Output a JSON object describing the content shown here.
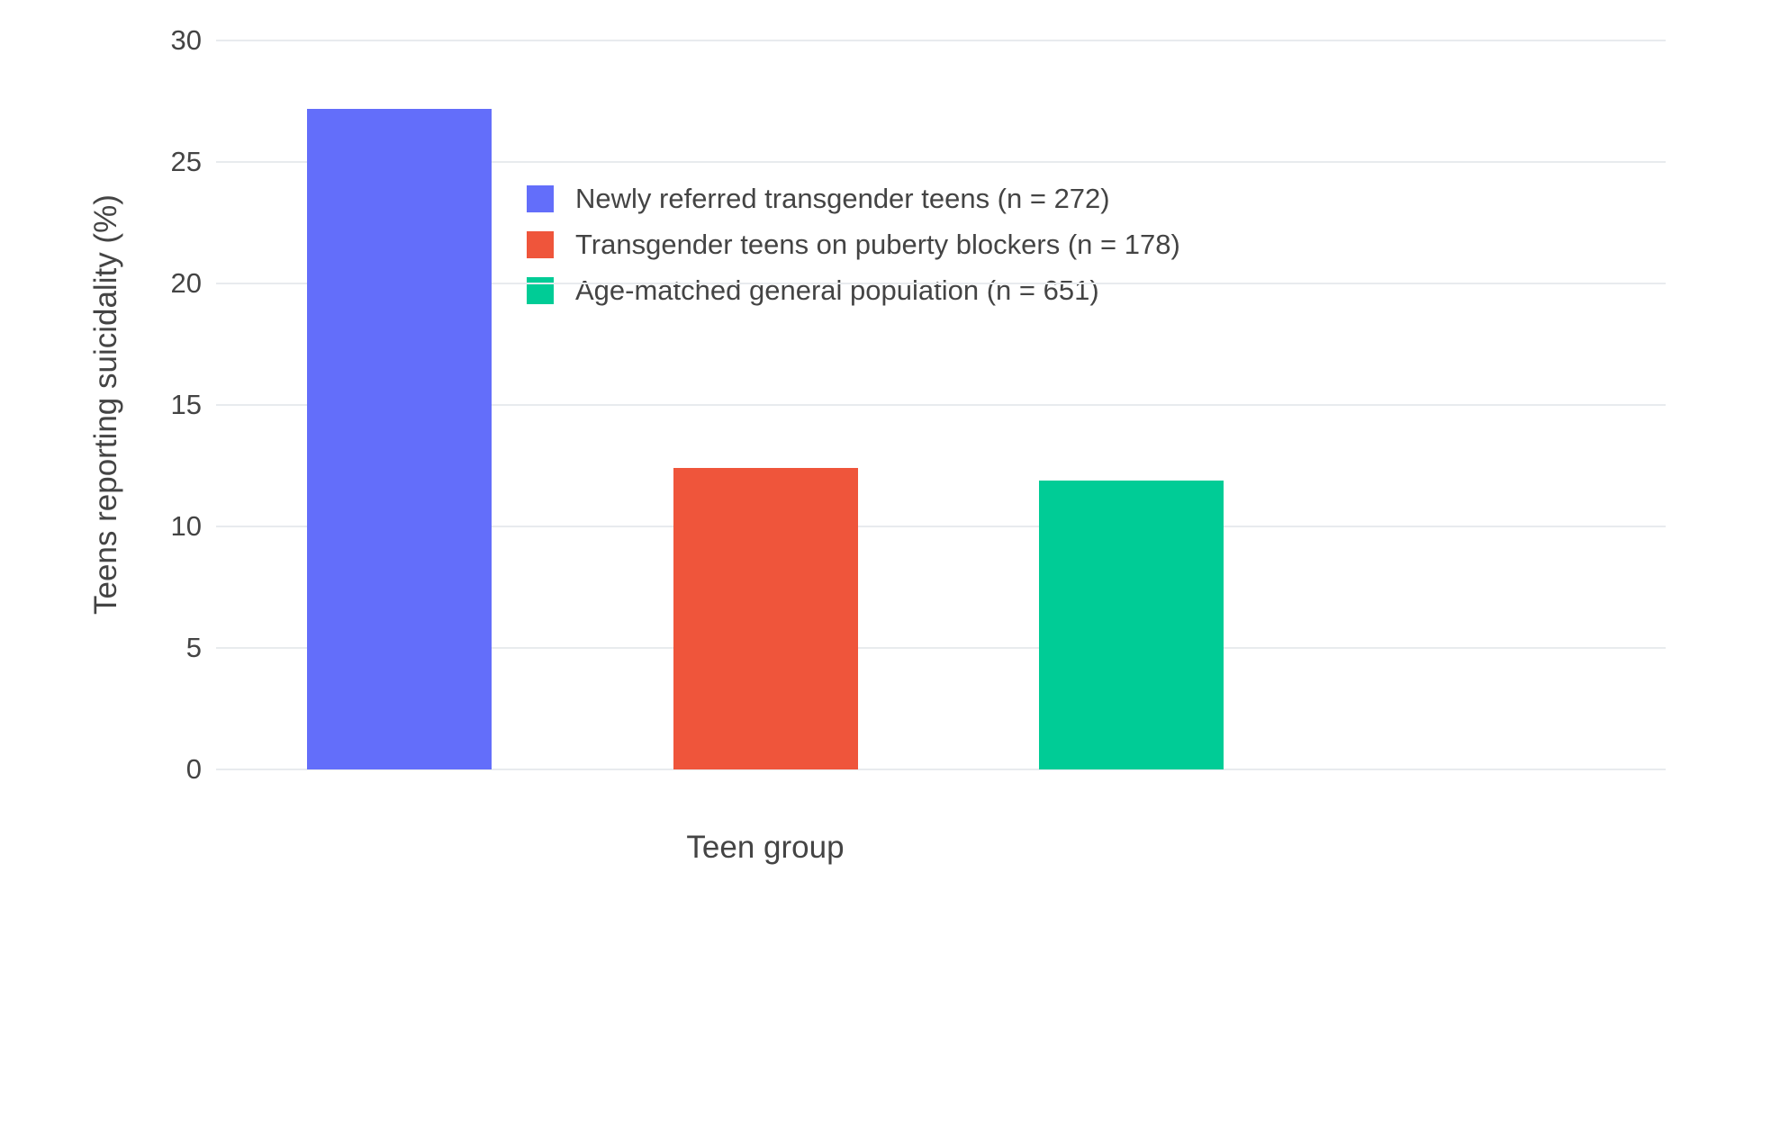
{
  "chart_data": {
    "type": "bar",
    "title": "",
    "xlabel": "Teen group",
    "ylabel": "Teens reporting suicidality (%)",
    "categories": [
      "Newly referred transgender teens (n = 272)",
      "Transgender teens on puberty blockers (n = 178)",
      "Age-matched general population (n = 651)"
    ],
    "values": [
      27.2,
      12.4,
      11.9
    ],
    "colors": [
      "#636efa",
      "#ef553b",
      "#00cc96"
    ],
    "ylim": [
      0,
      30
    ],
    "yticks": [
      0,
      5,
      10,
      15,
      20,
      25,
      30
    ],
    "grid": true,
    "legend_position": "inside-top-left",
    "legend": [
      {
        "label": "Newly referred transgender teens (n = 272)",
        "color": "#636efa"
      },
      {
        "label": "Transgender teens on puberty blockers (n = 178)",
        "color": "#ef553b"
      },
      {
        "label": "Age-matched general population (n = 651)",
        "color": "#00cc96"
      }
    ],
    "background": "#ffffff",
    "gridline_color": "#e8ebee",
    "text_color": "#444444"
  }
}
